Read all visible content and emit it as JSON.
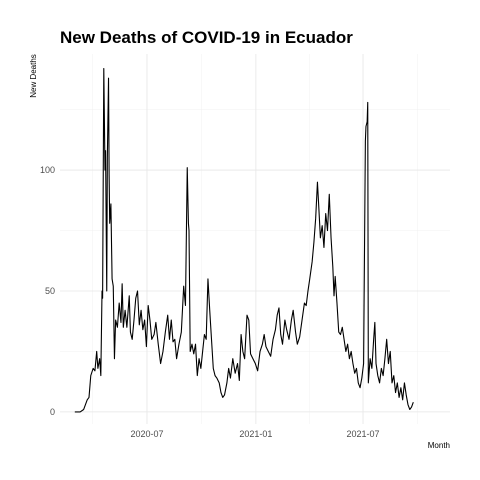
{
  "chart_data": {
    "type": "line",
    "title": "New Deaths of COVID-19 in Ecuador",
    "xlabel": "Month",
    "ylabel": "New Deaths",
    "x_ticks": [
      "2020-07",
      "2021-01",
      "2021-07"
    ],
    "y_ticks": [
      0,
      50,
      100
    ],
    "xlim": [
      "2020-02-05",
      "2021-11-25"
    ],
    "ylim": [
      -5,
      148
    ],
    "grid": true,
    "series": [
      {
        "points": [
          [
            "2020-03-01",
            0
          ],
          [
            "2020-03-10",
            0
          ],
          [
            "2020-03-16",
            1
          ],
          [
            "2020-03-22",
            5
          ],
          [
            "2020-03-25",
            6
          ],
          [
            "2020-03-28",
            15
          ],
          [
            "2020-04-01",
            18
          ],
          [
            "2020-04-04",
            17
          ],
          [
            "2020-04-07",
            25
          ],
          [
            "2020-04-09",
            18
          ],
          [
            "2020-04-12",
            22
          ],
          [
            "2020-04-14",
            15
          ],
          [
            "2020-04-16",
            50
          ],
          [
            "2020-04-17",
            47
          ],
          [
            "2020-04-19",
            142
          ],
          [
            "2020-04-21",
            100
          ],
          [
            "2020-04-22",
            108
          ],
          [
            "2020-04-24",
            50
          ],
          [
            "2020-04-25",
            105
          ],
          [
            "2020-04-27",
            138
          ],
          [
            "2020-04-28",
            98
          ],
          [
            "2020-04-29",
            78
          ],
          [
            "2020-05-01",
            86
          ],
          [
            "2020-05-03",
            55
          ],
          [
            "2020-05-05",
            52
          ],
          [
            "2020-05-07",
            22
          ],
          [
            "2020-05-09",
            38
          ],
          [
            "2020-05-12",
            35
          ],
          [
            "2020-05-15",
            45
          ],
          [
            "2020-05-18",
            37
          ],
          [
            "2020-05-20",
            53
          ],
          [
            "2020-05-22",
            35
          ],
          [
            "2020-05-25",
            42
          ],
          [
            "2020-05-28",
            35
          ],
          [
            "2020-06-01",
            48
          ],
          [
            "2020-06-03",
            33
          ],
          [
            "2020-06-06",
            30
          ],
          [
            "2020-06-09",
            38
          ],
          [
            "2020-06-12",
            47
          ],
          [
            "2020-06-15",
            50
          ],
          [
            "2020-06-18",
            36
          ],
          [
            "2020-06-21",
            42
          ],
          [
            "2020-06-24",
            34
          ],
          [
            "2020-06-27",
            38
          ],
          [
            "2020-06-30",
            27
          ],
          [
            "2020-07-03",
            44
          ],
          [
            "2020-07-06",
            38
          ],
          [
            "2020-07-09",
            30
          ],
          [
            "2020-07-13",
            32
          ],
          [
            "2020-07-16",
            37
          ],
          [
            "2020-07-20",
            28
          ],
          [
            "2020-07-24",
            20
          ],
          [
            "2020-07-28",
            25
          ],
          [
            "2020-08-01",
            33
          ],
          [
            "2020-08-05",
            40
          ],
          [
            "2020-08-08",
            30
          ],
          [
            "2020-08-11",
            38
          ],
          [
            "2020-08-14",
            29
          ],
          [
            "2020-08-17",
            30
          ],
          [
            "2020-08-20",
            22
          ],
          [
            "2020-08-24",
            28
          ],
          [
            "2020-08-28",
            33
          ],
          [
            "2020-09-01",
            52
          ],
          [
            "2020-09-04",
            44
          ],
          [
            "2020-09-07",
            101
          ],
          [
            "2020-09-09",
            78
          ],
          [
            "2020-09-10",
            75
          ],
          [
            "2020-09-12",
            25
          ],
          [
            "2020-09-15",
            28
          ],
          [
            "2020-09-18",
            24
          ],
          [
            "2020-09-21",
            28
          ],
          [
            "2020-09-24",
            15
          ],
          [
            "2020-09-27",
            22
          ],
          [
            "2020-09-30",
            18
          ],
          [
            "2020-10-03",
            25
          ],
          [
            "2020-10-06",
            32
          ],
          [
            "2020-10-09",
            30
          ],
          [
            "2020-10-12",
            55
          ],
          [
            "2020-10-15",
            42
          ],
          [
            "2020-10-18",
            30
          ],
          [
            "2020-10-21",
            18
          ],
          [
            "2020-10-24",
            15
          ],
          [
            "2020-10-27",
            14
          ],
          [
            "2020-10-31",
            12
          ],
          [
            "2020-11-03",
            8
          ],
          [
            "2020-11-06",
            6
          ],
          [
            "2020-11-09",
            7
          ],
          [
            "2020-11-13",
            12
          ],
          [
            "2020-11-16",
            18
          ],
          [
            "2020-11-19",
            14
          ],
          [
            "2020-11-23",
            22
          ],
          [
            "2020-11-27",
            16
          ],
          [
            "2020-12-01",
            20
          ],
          [
            "2020-12-04",
            13
          ],
          [
            "2020-12-07",
            32
          ],
          [
            "2020-12-10",
            25
          ],
          [
            "2020-12-13",
            22
          ],
          [
            "2020-12-17",
            40
          ],
          [
            "2020-12-20",
            38
          ],
          [
            "2020-12-23",
            24
          ],
          [
            "2020-12-27",
            22
          ],
          [
            "2020-12-31",
            20
          ],
          [
            "2021-01-04",
            17
          ],
          [
            "2021-01-08",
            25
          ],
          [
            "2021-01-12",
            28
          ],
          [
            "2021-01-15",
            32
          ],
          [
            "2021-01-18",
            27
          ],
          [
            "2021-01-22",
            25
          ],
          [
            "2021-01-26",
            23
          ],
          [
            "2021-01-30",
            30
          ],
          [
            "2021-02-03",
            34
          ],
          [
            "2021-02-06",
            40
          ],
          [
            "2021-02-09",
            43
          ],
          [
            "2021-02-12",
            32
          ],
          [
            "2021-02-15",
            28
          ],
          [
            "2021-02-19",
            38
          ],
          [
            "2021-02-22",
            34
          ],
          [
            "2021-02-26",
            30
          ],
          [
            "2021-03-02",
            38
          ],
          [
            "2021-03-05",
            42
          ],
          [
            "2021-03-09",
            33
          ],
          [
            "2021-03-12",
            28
          ],
          [
            "2021-03-16",
            31
          ],
          [
            "2021-03-20",
            38
          ],
          [
            "2021-03-24",
            45
          ],
          [
            "2021-03-27",
            44
          ],
          [
            "2021-03-30",
            50
          ],
          [
            "2021-04-02",
            55
          ],
          [
            "2021-04-06",
            62
          ],
          [
            "2021-04-09",
            70
          ],
          [
            "2021-04-12",
            80
          ],
          [
            "2021-04-15",
            95
          ],
          [
            "2021-04-17",
            86
          ],
          [
            "2021-04-20",
            72
          ],
          [
            "2021-04-23",
            77
          ],
          [
            "2021-04-26",
            68
          ],
          [
            "2021-04-29",
            82
          ],
          [
            "2021-05-02",
            75
          ],
          [
            "2021-05-05",
            90
          ],
          [
            "2021-05-08",
            72
          ],
          [
            "2021-05-11",
            60
          ],
          [
            "2021-05-13",
            48
          ],
          [
            "2021-05-15",
            56
          ],
          [
            "2021-05-18",
            45
          ],
          [
            "2021-05-21",
            33
          ],
          [
            "2021-05-24",
            32
          ],
          [
            "2021-05-27",
            35
          ],
          [
            "2021-05-30",
            30
          ],
          [
            "2021-06-02",
            25
          ],
          [
            "2021-06-05",
            28
          ],
          [
            "2021-06-08",
            22
          ],
          [
            "2021-06-11",
            25
          ],
          [
            "2021-06-14",
            20
          ],
          [
            "2021-06-17",
            16
          ],
          [
            "2021-06-20",
            18
          ],
          [
            "2021-06-23",
            12
          ],
          [
            "2021-06-26",
            10
          ],
          [
            "2021-06-29",
            14
          ],
          [
            "2021-07-02",
            20
          ],
          [
            "2021-07-05",
            112
          ],
          [
            "2021-07-06",
            118
          ],
          [
            "2021-07-08",
            120
          ],
          [
            "2021-07-09",
            128
          ],
          [
            "2021-07-10",
            12
          ],
          [
            "2021-07-13",
            22
          ],
          [
            "2021-07-16",
            18
          ],
          [
            "2021-07-19",
            30
          ],
          [
            "2021-07-21",
            37
          ],
          [
            "2021-07-23",
            20
          ],
          [
            "2021-07-26",
            15
          ],
          [
            "2021-07-29",
            12
          ],
          [
            "2021-08-01",
            18
          ],
          [
            "2021-08-04",
            15
          ],
          [
            "2021-08-07",
            22
          ],
          [
            "2021-08-10",
            30
          ],
          [
            "2021-08-13",
            20
          ],
          [
            "2021-08-16",
            25
          ],
          [
            "2021-08-19",
            12
          ],
          [
            "2021-08-22",
            15
          ],
          [
            "2021-08-25",
            8
          ],
          [
            "2021-08-28",
            12
          ],
          [
            "2021-08-31",
            6
          ],
          [
            "2021-09-03",
            10
          ],
          [
            "2021-09-06",
            5
          ],
          [
            "2021-09-09",
            12
          ],
          [
            "2021-09-12",
            7
          ],
          [
            "2021-09-15",
            3
          ],
          [
            "2021-09-18",
            1
          ],
          [
            "2021-09-21",
            2
          ],
          [
            "2021-09-24",
            4
          ]
        ]
      }
    ]
  }
}
